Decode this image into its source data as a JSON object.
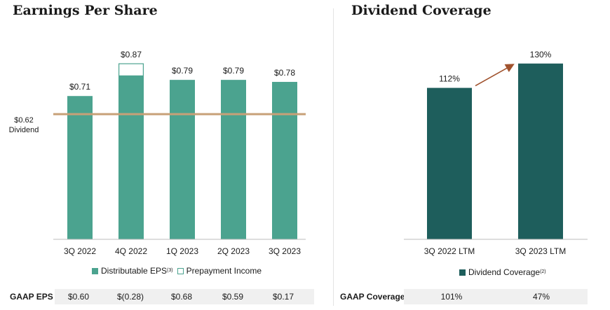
{
  "eps_panel": {
    "title": "Earnings Per Share",
    "dividend_label_value": "$0.62",
    "dividend_label_text": "Dividend",
    "legend": {
      "distributable": "Distributable EPS",
      "distributable_sup": "(3)",
      "prepayment": "Prepayment Income"
    },
    "gaap": {
      "label": "GAAP EPS",
      "values": [
        "$0.60",
        "$(0.28)",
        "$0.68",
        "$0.59",
        "$0.17"
      ]
    }
  },
  "coverage_panel": {
    "title": "Dividend Coverage",
    "legend": {
      "coverage": "Dividend Coverage",
      "coverage_sup": "(2)"
    },
    "gaap": {
      "label": "GAAP Coverage",
      "values": [
        "101%",
        "47%"
      ]
    }
  },
  "colors": {
    "distributable": "#4ba38f",
    "prepayment_border": "#4ba38f",
    "dividend_line": "#c7a078",
    "coverage": "#1e5e5c",
    "arrow": "#a0522d"
  },
  "chart_data": [
    {
      "type": "bar",
      "title": "Earnings Per Share",
      "categories": [
        "3Q 2022",
        "4Q 2022",
        "1Q 2023",
        "2Q 2023",
        "3Q 2023"
      ],
      "series": [
        {
          "name": "Distributable EPS",
          "values": [
            0.71,
            0.81,
            0.79,
            0.79,
            0.78
          ]
        },
        {
          "name": "Prepayment Income",
          "values": [
            0,
            0.06,
            0,
            0,
            0
          ]
        }
      ],
      "totals": [
        0.71,
        0.87,
        0.79,
        0.79,
        0.78
      ],
      "data_labels": [
        "$0.71",
        "$0.87",
        "$0.79",
        "$0.79",
        "$0.78"
      ],
      "reference_line": {
        "value": 0.62
      },
      "ylim": [
        0,
        0.95
      ],
      "stacked": true,
      "grid": false
    },
    {
      "type": "bar",
      "title": "Dividend Coverage",
      "categories": [
        "3Q 2022 LTM",
        "3Q 2023 LTM"
      ],
      "series": [
        {
          "name": "Dividend Coverage",
          "values": [
            112,
            130
          ]
        }
      ],
      "data_labels": [
        "112%",
        "130%"
      ],
      "ylim": [
        0,
        148
      ],
      "grid": false
    }
  ]
}
